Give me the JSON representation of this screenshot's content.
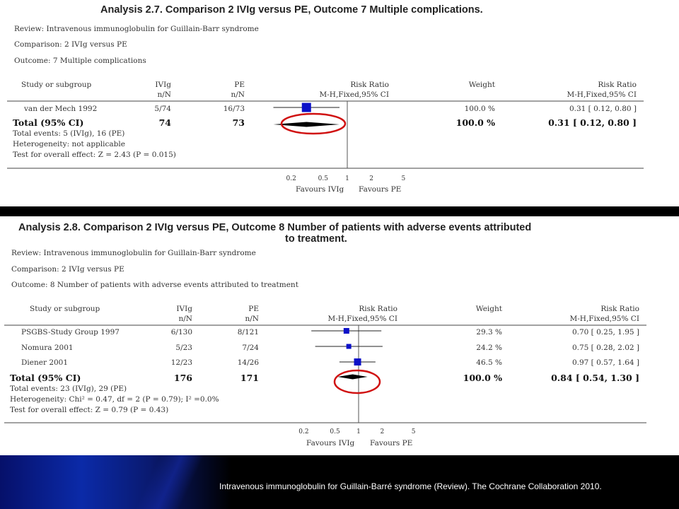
{
  "chart_data": [
    {
      "type": "forest",
      "title": "Analysis 2.7.   Comparison 2 IVIg versus PE, Outcome 7 Multiple complications.",
      "review": "Review:   Intravenous immunoglobulin for Guillain-Barr syndrome",
      "comparison": "Comparison:   2 IVIg versus PE",
      "outcome": "Outcome:   7 Multiple complications",
      "headers": {
        "study": "Study or subgroup",
        "group1": "IVIg",
        "group1_sub": "n/N",
        "group2": "PE",
        "group2_sub": "n/N",
        "effect": "Risk Ratio",
        "effect_sub": "M-H,Fixed,95% CI",
        "weight": "Weight",
        "effect2": "Risk Ratio",
        "effect2_sub": "M-H,Fixed,95% CI"
      },
      "studies": [
        {
          "name": "van der Mech 1992",
          "g1": "5/74",
          "g2": "16/73",
          "rr": 0.31,
          "lo": 0.12,
          "hi": 0.8,
          "weight": "100.0 %",
          "ci_text": "0.31 [ 0.12, 0.80 ]"
        }
      ],
      "total": {
        "label": "Total (95% CI)",
        "g1": "74",
        "g2": "73",
        "rr": 0.31,
        "lo": 0.12,
        "hi": 0.8,
        "weight": "100.0 %",
        "ci_text": "0.31 [ 0.12, 0.80 ]"
      },
      "notes": [
        "Total events: 5 (IVIg), 16 (PE)",
        "Heterogeneity: not applicable",
        "Test for overall effect: Z = 2.43 (P = 0.015)"
      ],
      "ticks": [
        0.2,
        0.5,
        1,
        2,
        5
      ],
      "tick_labels": [
        "0.2",
        "0.5",
        "1",
        "2",
        "5"
      ],
      "favours_left": "Favours IVIg",
      "favours_right": "Favours PE",
      "xscale": "log",
      "xlim": [
        0.1,
        10
      ]
    },
    {
      "type": "forest",
      "title_line1": "Analysis 2.8.   Comparison 2 IVIg versus PE, Outcome 8 Number of patients with adverse events attributed",
      "title_line2": "to treatment.",
      "review": "Review:   Intravenous immunoglobulin for Guillain-Barr syndrome",
      "comparison": "Comparison:   2 IVIg versus PE",
      "outcome": "Outcome:   8 Number of patients with adverse events attributed to treatment",
      "headers": {
        "study": "Study or subgroup",
        "group1": "IVIg",
        "group1_sub": "n/N",
        "group2": "PE",
        "group2_sub": "n/N",
        "effect": "Risk Ratio",
        "effect_sub": "M-H,Fixed,95% CI",
        "weight": "Weight",
        "effect2": "Risk Ratio",
        "effect2_sub": "M-H,Fixed,95% CI"
      },
      "studies": [
        {
          "name": "PSGBS-Study Group 1997",
          "g1": "6/130",
          "g2": "8/121",
          "rr": 0.7,
          "lo": 0.25,
          "hi": 1.95,
          "weight": "29.3 %",
          "ci_text": "0.70 [ 0.25, 1.95 ]"
        },
        {
          "name": "Nomura 2001",
          "g1": "5/23",
          "g2": "7/24",
          "rr": 0.75,
          "lo": 0.28,
          "hi": 2.02,
          "weight": "24.2 %",
          "ci_text": "0.75 [ 0.28, 2.02 ]"
        },
        {
          "name": "Diener 2001",
          "g1": "12/23",
          "g2": "14/26",
          "rr": 0.97,
          "lo": 0.57,
          "hi": 1.64,
          "weight": "46.5 %",
          "ci_text": "0.97 [ 0.57, 1.64 ]"
        }
      ],
      "total": {
        "label": "Total (95% CI)",
        "g1": "176",
        "g2": "171",
        "rr": 0.84,
        "lo": 0.54,
        "hi": 1.3,
        "weight": "100.0 %",
        "ci_text": "0.84 [ 0.54, 1.30 ]"
      },
      "notes": [
        "Total events: 23 (IVIg), 29 (PE)",
        "Heterogeneity: Chi² = 0.47, df = 2 (P = 0.79); I² =0.0%",
        "Test for overall effect: Z = 0.79 (P = 0.43)"
      ],
      "ticks": [
        0.2,
        0.5,
        1,
        2,
        5
      ],
      "tick_labels": [
        "0.2",
        "0.5",
        "1",
        "2",
        "5"
      ],
      "favours_left": "Favours IVIg",
      "favours_right": "Favours PE",
      "xscale": "log",
      "xlim": [
        0.1,
        10
      ]
    }
  ],
  "colors": {
    "marker": "#0b10c8",
    "highlight": "#d01010",
    "axis": "#555555"
  },
  "footer": "Intravenous immunoglobulin for Guillain-Barré syndrome (Review). The Cochrane Collaboration 2010."
}
